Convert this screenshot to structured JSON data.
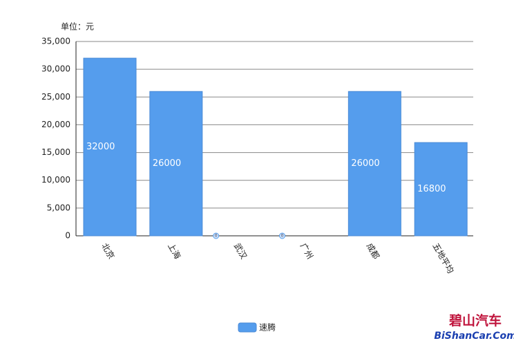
{
  "chart_data": {
    "type": "bar",
    "unit_label": "单位：元",
    "categories": [
      "北京",
      "上海",
      "武汉",
      "广州",
      "成都",
      "五地平均"
    ],
    "series": [
      {
        "name": "速腾",
        "color": "#559ded",
        "values": [
          32000,
          26000,
          0,
          0,
          26000,
          16800
        ]
      }
    ],
    "ylim": [
      0,
      35000
    ],
    "yticks": [
      0,
      {
        "value": 5000,
        "label": "5,000"
      },
      {
        "value": 10000,
        "label": "10,000"
      },
      {
        "value": 15000,
        "label": "15,000"
      },
      {
        "value": 20000,
        "label": "20,000"
      },
      {
        "value": 25000,
        "label": "25,000"
      },
      {
        "value": 30000,
        "label": "30,000"
      },
      {
        "value": 35000,
        "label": "35,000"
      }
    ],
    "grid": true,
    "legend": "bottom",
    "watermark": [
      "碧山汽车",
      "BiShanCar.Com"
    ]
  }
}
